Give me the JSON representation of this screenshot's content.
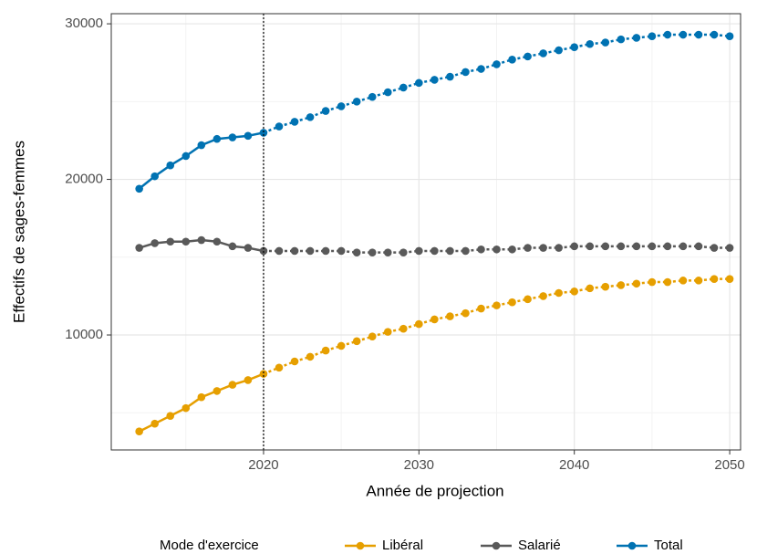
{
  "chart_data": {
    "type": "line",
    "x_label": "Année de projection",
    "y_label": "Effectifs de sages-femmes",
    "legend_title": "Mode d'exercice",
    "legend_position": "bottom",
    "x": [
      2012,
      2013,
      2014,
      2015,
      2016,
      2017,
      2018,
      2019,
      2020,
      2021,
      2022,
      2023,
      2024,
      2025,
      2026,
      2027,
      2028,
      2029,
      2030,
      2031,
      2032,
      2033,
      2034,
      2035,
      2036,
      2037,
      2038,
      2039,
      2040,
      2041,
      2042,
      2043,
      2044,
      2045,
      2046,
      2047,
      2048,
      2049,
      2050
    ],
    "series": [
      {
        "name": "Libéral",
        "color": "#E69F00",
        "values": [
          3800,
          4300,
          4800,
          5300,
          6000,
          6400,
          6800,
          7100,
          7500,
          7900,
          8300,
          8600,
          9000,
          9300,
          9600,
          9900,
          10200,
          10400,
          10700,
          11000,
          11200,
          11400,
          11700,
          11900,
          12100,
          12300,
          12500,
          12700,
          12800,
          13000,
          13100,
          13200,
          13300,
          13400,
          13400,
          13500,
          13500,
          13600,
          13600
        ]
      },
      {
        "name": "Salarié",
        "color": "#595959",
        "values": [
          15600,
          15900,
          16000,
          16000,
          16100,
          16000,
          15700,
          15600,
          15400,
          15400,
          15400,
          15400,
          15400,
          15400,
          15300,
          15300,
          15300,
          15300,
          15400,
          15400,
          15400,
          15400,
          15500,
          15500,
          15500,
          15600,
          15600,
          15600,
          15700,
          15700,
          15700,
          15700,
          15700,
          15700,
          15700,
          15700,
          15700,
          15600,
          15600
        ]
      },
      {
        "name": "Total",
        "color": "#0072B2",
        "values": [
          19400,
          20200,
          20900,
          21500,
          22200,
          22600,
          22700,
          22800,
          23000,
          23400,
          23700,
          24000,
          24400,
          24700,
          25000,
          25300,
          25600,
          25900,
          26200,
          26400,
          26600,
          26900,
          27100,
          27400,
          27700,
          27900,
          28100,
          28300,
          28500,
          28700,
          28800,
          29000,
          29100,
          29200,
          29300,
          29300,
          29300,
          29300,
          29200
        ]
      }
    ],
    "vline": 2020,
    "xlim": [
      2010.2,
      2050.7
    ],
    "xticks": [
      2020,
      2030,
      2040,
      2050
    ],
    "minor_xticks": [
      2015,
      2025,
      2035,
      2045
    ],
    "ylim": [
      2610,
      30650
    ],
    "yticks": [
      10000,
      20000,
      30000
    ],
    "minor_yticks": [
      5000,
      15000,
      25000
    ],
    "grid": true
  }
}
